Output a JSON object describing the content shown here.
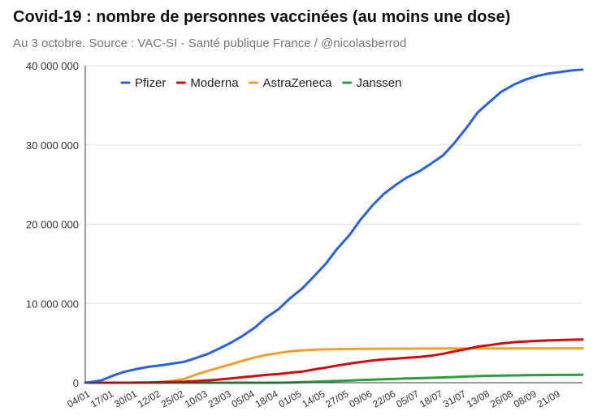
{
  "title": "Covid-19 : nombre de personnes vaccinées (au moins une dose)",
  "subtitle": "Au 3 octobre. Source : VAC-SI - Santé publique France / @nicolasberrod",
  "colors": {
    "Pfizer": "#2d62d3",
    "Moderna": "#cc1010",
    "AstraZeneca": "#f0a030",
    "Janssen": "#2c9e3f",
    "grid": "#e2e2e2",
    "axis": "#333333"
  },
  "chart_data": {
    "type": "line",
    "grid": true,
    "legend_position": "top",
    "ylim": [
      0,
      40000000
    ],
    "y_ticks": [
      {
        "value": 0,
        "label": "0"
      },
      {
        "value": 10000000,
        "label": "10 000 000"
      },
      {
        "value": 20000000,
        "label": "20 000 000"
      },
      {
        "value": 30000000,
        "label": "30 000 000"
      },
      {
        "value": 40000000,
        "label": "40 000 000"
      }
    ],
    "x_ticks": [
      "04/01",
      "17/01",
      "30/01",
      "12/02",
      "25/02",
      "10/03",
      "23/03",
      "05/04",
      "18/04",
      "01/05",
      "14/05",
      "27/05",
      "09/06",
      "22/06",
      "05/07",
      "18/07",
      "31/07",
      "13/08",
      "26/08",
      "08/09",
      "21/09"
    ],
    "x": [
      "01/01",
      "04/01",
      "10/01",
      "17/01",
      "23/01",
      "30/01",
      "05/02",
      "12/02",
      "18/02",
      "25/02",
      "03/03",
      "10/03",
      "16/03",
      "23/03",
      "29/03",
      "05/04",
      "11/04",
      "18/04",
      "24/04",
      "01/05",
      "07/05",
      "14/05",
      "20/05",
      "27/05",
      "02/06",
      "09/06",
      "15/06",
      "22/06",
      "28/06",
      "05/07",
      "11/07",
      "18/07",
      "24/07",
      "31/07",
      "06/08",
      "13/08",
      "19/08",
      "26/08",
      "01/09",
      "08/09",
      "14/09",
      "21/09",
      "27/09",
      "03/10"
    ],
    "series": [
      {
        "name": "Pfizer",
        "values": [
          0,
          80000,
          300000,
          950000,
          1400000,
          1750000,
          2000000,
          2200000,
          2400000,
          2650000,
          3100000,
          3650000,
          4300000,
          5100000,
          5900000,
          7000000,
          8200000,
          9300000,
          10600000,
          11900000,
          13300000,
          15000000,
          16800000,
          18600000,
          20500000,
          22400000,
          23800000,
          25000000,
          25900000,
          26700000,
          27600000,
          28700000,
          30200000,
          32200000,
          34100000,
          35500000,
          36700000,
          37600000,
          38200000,
          38700000,
          39000000,
          39200000,
          39400000,
          39500000
        ]
      },
      {
        "name": "Moderna",
        "values": [
          0,
          0,
          0,
          0,
          0,
          10000,
          30000,
          60000,
          90000,
          130000,
          200000,
          300000,
          400000,
          550000,
          700000,
          850000,
          980000,
          1100000,
          1250000,
          1400000,
          1650000,
          1900000,
          2150000,
          2400000,
          2600000,
          2800000,
          2950000,
          3050000,
          3150000,
          3250000,
          3400000,
          3650000,
          3950000,
          4250000,
          4550000,
          4750000,
          4950000,
          5100000,
          5200000,
          5280000,
          5330000,
          5380000,
          5420000,
          5450000
        ]
      },
      {
        "name": "AstraZeneca",
        "values": [
          0,
          0,
          0,
          0,
          0,
          0,
          0,
          100000,
          200000,
          500000,
          1000000,
          1500000,
          1900000,
          2350000,
          2750000,
          3200000,
          3500000,
          3750000,
          3950000,
          4080000,
          4150000,
          4200000,
          4230000,
          4250000,
          4270000,
          4280000,
          4290000,
          4295000,
          4300000,
          4305000,
          4310000,
          4310000,
          4315000,
          4320000,
          4320000,
          4325000,
          4325000,
          4330000,
          4330000,
          4330000,
          4330000,
          4335000,
          4335000,
          4335000
        ]
      },
      {
        "name": "Janssen",
        "values": [
          0,
          0,
          0,
          0,
          0,
          0,
          0,
          0,
          0,
          0,
          0,
          0,
          0,
          0,
          0,
          0,
          0,
          5000,
          30000,
          70000,
          110000,
          160000,
          210000,
          270000,
          330000,
          390000,
          440000,
          490000,
          530000,
          570000,
          610000,
          660000,
          720000,
          780000,
          830000,
          870000,
          900000,
          925000,
          945000,
          960000,
          970000,
          980000,
          985000,
          990000
        ]
      }
    ]
  }
}
